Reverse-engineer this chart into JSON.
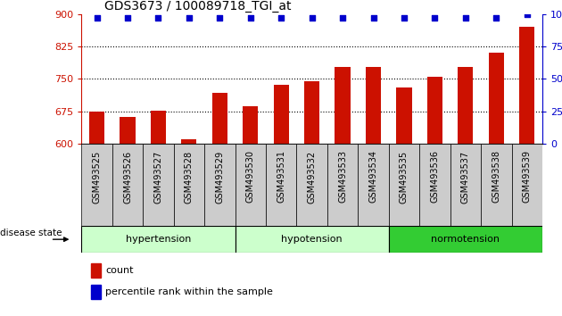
{
  "title": "GDS3673 / 100089718_TGI_at",
  "samples": [
    "GSM493525",
    "GSM493526",
    "GSM493527",
    "GSM493528",
    "GSM493529",
    "GSM493530",
    "GSM493531",
    "GSM493532",
    "GSM493533",
    "GSM493534",
    "GSM493535",
    "GSM493536",
    "GSM493537",
    "GSM493538",
    "GSM493539"
  ],
  "bar_values": [
    675,
    663,
    677,
    610,
    718,
    686,
    736,
    745,
    778,
    778,
    730,
    756,
    778,
    812,
    870
  ],
  "percentile_values": [
    97,
    97,
    97,
    97,
    97,
    97,
    97,
    97,
    97,
    97,
    97,
    97,
    97,
    97,
    100
  ],
  "ylim_left": [
    600,
    900
  ],
  "ylim_right": [
    0,
    100
  ],
  "yticks_left": [
    600,
    675,
    750,
    825,
    900
  ],
  "yticks_right": [
    0,
    25,
    50,
    75,
    100
  ],
  "bar_color": "#cc1100",
  "dot_color": "#0000cc",
  "bg_color": "#ffffff",
  "tick_bg_color": "#cccccc",
  "group_colors": [
    "#ccffcc",
    "#ccffcc",
    "#33cc33"
  ],
  "group_labels": [
    "hypertension",
    "hypotension",
    "normotension"
  ],
  "group_starts": [
    0,
    5,
    10
  ],
  "group_ends": [
    5,
    10,
    15
  ],
  "legend_count_label": "count",
  "legend_pct_label": "percentile rank within the sample",
  "disease_state_label": "disease state",
  "left_tick_color": "#cc1100",
  "right_tick_color": "#0000cc"
}
